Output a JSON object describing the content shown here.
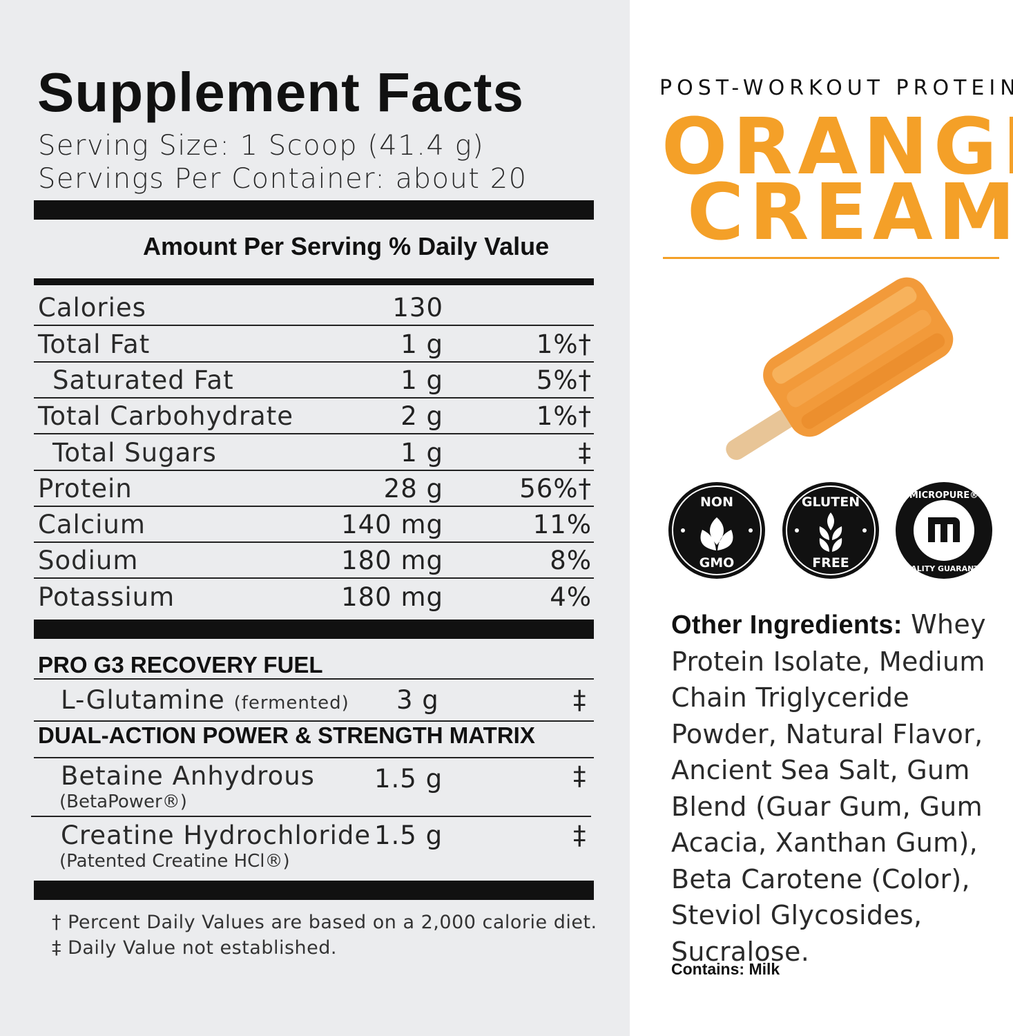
{
  "panel": {
    "title": "Supplement Facts",
    "serving_size": "Serving Size: 1 Scoop (41.4 g)",
    "servings_per_container": "Servings Per Container: about 20",
    "header": "Amount Per Serving % Daily Value"
  },
  "nutrients": [
    {
      "name": "Calories",
      "amount": "130",
      "dv": "",
      "indent": false
    },
    {
      "name": "Total Fat",
      "amount": "1 g",
      "dv": "1%†",
      "indent": false
    },
    {
      "name": "Saturated Fat",
      "amount": "1 g",
      "dv": "5%†",
      "indent": true
    },
    {
      "name": "Total Carbohydrate",
      "amount": "2 g",
      "dv": "1%†",
      "indent": false
    },
    {
      "name": "Total Sugars",
      "amount": "1 g",
      "dv": "‡",
      "indent": true
    },
    {
      "name": "Protein",
      "amount": "28 g",
      "dv": "56%†",
      "indent": false
    },
    {
      "name": "Calcium",
      "amount": "140 mg",
      "dv": "11%",
      "indent": false
    },
    {
      "name": "Sodium",
      "amount": "180 mg",
      "dv": "8%",
      "indent": false
    },
    {
      "name": "Potassium",
      "amount": "180 mg",
      "dv": "4%",
      "indent": false
    }
  ],
  "blends": [
    {
      "title": "PRO G3 RECOVERY FUEL",
      "items": [
        {
          "name": "L-Glutamine",
          "note": "(fermented)",
          "amount": "3 g",
          "dv": "‡"
        }
      ]
    },
    {
      "title": "DUAL-ACTION POWER & STRENGTH MATRIX",
      "items": [
        {
          "name": "Betaine Anhydrous",
          "sub": "(BetaPower®)",
          "amount": "1.5 g",
          "dv": "‡"
        },
        {
          "name": "Creatine Hydrochloride",
          "sub": "(Patented Creatine HCl®)",
          "amount": "1.5 g",
          "dv": "‡"
        }
      ]
    }
  ],
  "footnotes": [
    "† Percent Daily Values are based on a 2,000 calorie diet.",
    "‡ Daily Value not established."
  ],
  "product": {
    "subtitle": "POST-WORKOUT PROTEIN",
    "flavor_line1": "ORANGE",
    "flavor_line2": "CREAM",
    "accent": "#f4a028"
  },
  "badges": [
    {
      "icon": "non-gmo-leaf-icon",
      "top": "NON",
      "bottom": "GMO"
    },
    {
      "icon": "gluten-free-wheat-icon",
      "top": "GLUTEN",
      "bottom": "FREE"
    },
    {
      "icon": "micropure-m-icon",
      "top": "MICROPURE®",
      "bottom": "QUALITY GUARANTEE"
    }
  ],
  "ingredients": {
    "label": "Other Ingredients:",
    "text": " Whey Protein Isolate, Medium Chain Triglyceride Powder, Natural Flavor, Ancient Sea Salt, Gum Blend (Guar Gum, Gum Acacia, Xanthan Gum), Beta Carotene (Color), Steviol Glycosides, Sucralose.",
    "contains": "Contains: Milk"
  }
}
